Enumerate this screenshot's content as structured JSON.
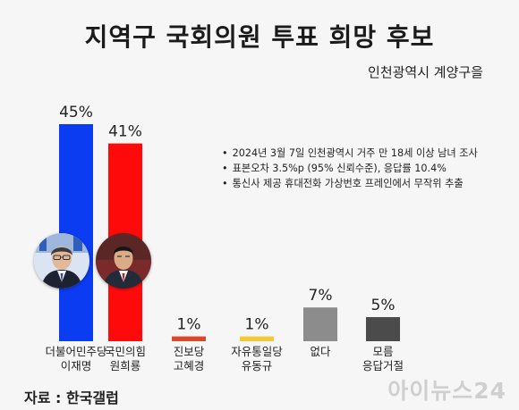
{
  "header": {
    "title": "지역구 국회의원 투표 희망 후보",
    "subtitle": "인천광역시 계양구을"
  },
  "notes": [
    "2024년 3월 7일 인천광역시 거주 만 18세 이상 남녀 조사",
    "표본오차 3.5%p (95% 신뢰수준), 응답률 10.4%",
    "통신사 제공 휴대전화 가상번호 프레인에서 무작위 추출"
  ],
  "footer": {
    "source": "자료 : 한국갤럽",
    "logo": "아이뉴스24"
  },
  "colors": {
    "democratic": "#0b3cf2",
    "people_power": "#ff0a0a",
    "justice": "#d94a2a",
    "liberty_unification": "#f5c83c",
    "none": "#8c8c8c",
    "undecided": "#4b4b4b"
  },
  "chart_data": {
    "type": "bar",
    "categories": [
      [
        "더불어민주당",
        "이재명"
      ],
      [
        "국민의힘",
        "원희룡"
      ],
      [
        "진보당",
        "고혜경"
      ],
      [
        "자유통일당",
        "유동규"
      ],
      [
        "없다"
      ],
      [
        "모름",
        "응답거절"
      ]
    ],
    "values": [
      45,
      41,
      1,
      1,
      7,
      5
    ],
    "value_labels": [
      "45%",
      "41%",
      "1%",
      "1%",
      "7%",
      "5%"
    ],
    "unit": "%",
    "colors": [
      "#0b3cf2",
      "#ff0a0a",
      "#d94a2a",
      "#f5c83c",
      "#8c8c8c",
      "#4b4b4b"
    ],
    "ylim": [
      0,
      45
    ]
  }
}
